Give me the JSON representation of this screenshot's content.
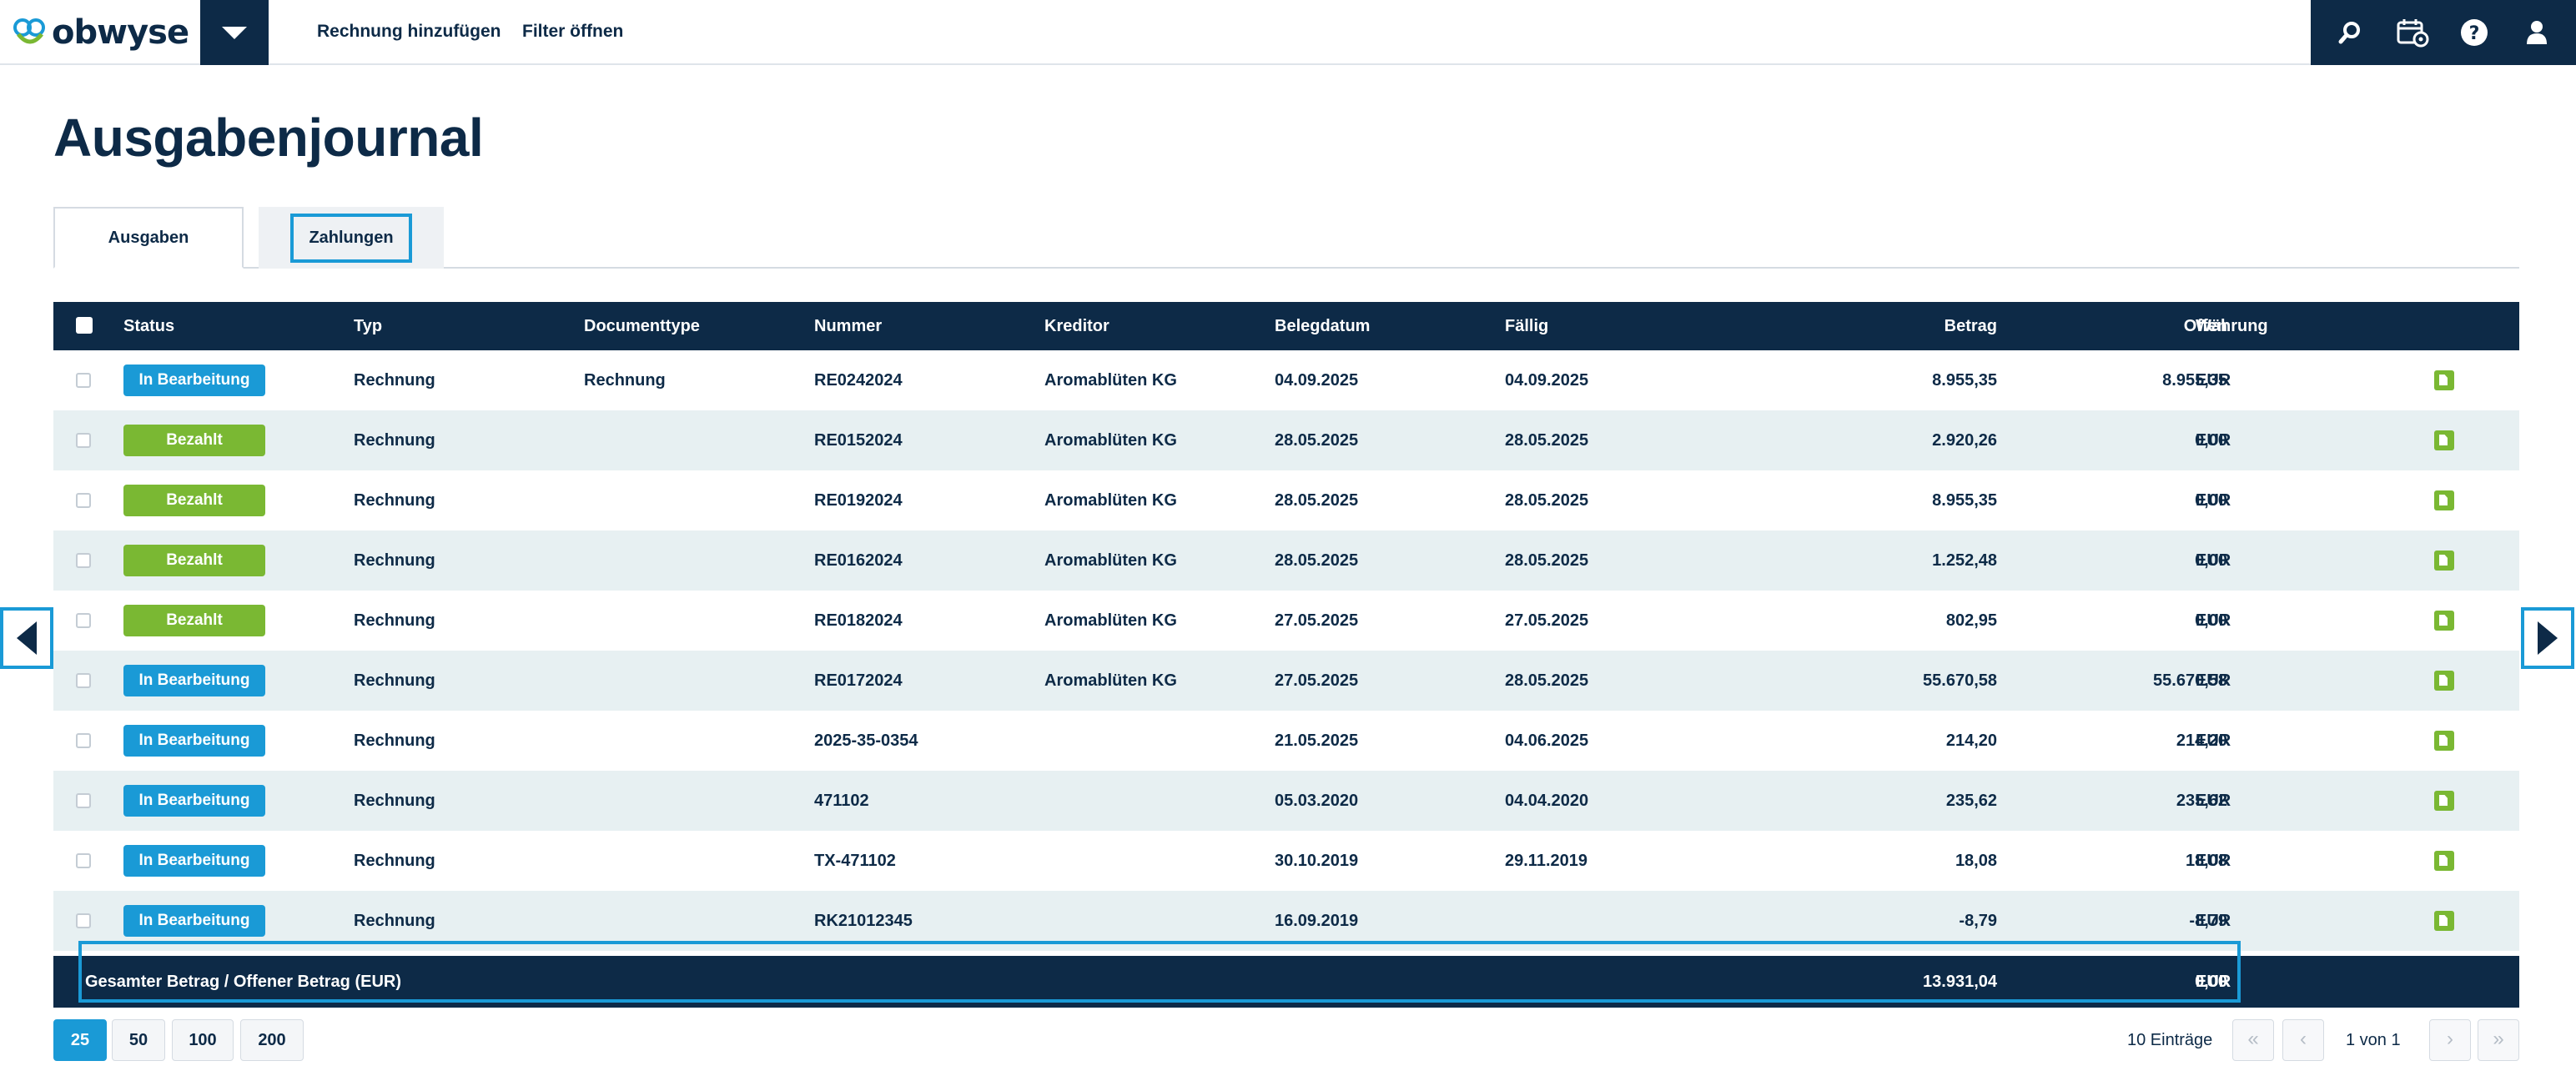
{
  "brand": {
    "name": "obwyse"
  },
  "nav": {
    "links": [
      "Rechnung hinzufügen",
      "Filter öffnen"
    ],
    "icons": [
      "search-icon",
      "calendar-settings-icon",
      "help-icon",
      "user-icon"
    ]
  },
  "page": {
    "title": "Ausgabenjournal"
  },
  "tabs": [
    "Ausgaben",
    "Zahlungen"
  ],
  "table": {
    "headers": {
      "status": "Status",
      "typ": "Typ",
      "documenttype": "Documenttype",
      "nummer": "Nummer",
      "kreditor": "Kreditor",
      "belegdatum": "Belegdatum",
      "faellig": "Fällig",
      "betrag": "Betrag",
      "offen": "Offen",
      "waehrung": "Währung"
    },
    "rows": [
      {
        "status": "In Bearbeitung",
        "status_color": "#1a9ad6",
        "typ": "Rechnung",
        "documenttype": "Rechnung",
        "nummer": "RE0242024",
        "kreditor": "Aromablüten KG",
        "belegdatum": "04.09.2025",
        "faellig": "04.09.2025",
        "betrag": "8.955,35",
        "offen": "8.955,35",
        "waehrung": "EUR"
      },
      {
        "status": "Bezahlt",
        "status_color": "#7ab833",
        "typ": "Rechnung",
        "documenttype": "",
        "nummer": "RE0152024",
        "kreditor": "Aromablüten KG",
        "belegdatum": "28.05.2025",
        "faellig": "28.05.2025",
        "betrag": "2.920,26",
        "offen": "0,00",
        "waehrung": "EUR"
      },
      {
        "status": "Bezahlt",
        "status_color": "#7ab833",
        "typ": "Rechnung",
        "documenttype": "",
        "nummer": "RE0192024",
        "kreditor": "Aromablüten KG",
        "belegdatum": "28.05.2025",
        "faellig": "28.05.2025",
        "betrag": "8.955,35",
        "offen": "0,00",
        "waehrung": "EUR"
      },
      {
        "status": "Bezahlt",
        "status_color": "#7ab833",
        "typ": "Rechnung",
        "documenttype": "",
        "nummer": "RE0162024",
        "kreditor": "Aromablüten KG",
        "belegdatum": "28.05.2025",
        "faellig": "28.05.2025",
        "betrag": "1.252,48",
        "offen": "0,00",
        "waehrung": "EUR"
      },
      {
        "status": "Bezahlt",
        "status_color": "#7ab833",
        "typ": "Rechnung",
        "documenttype": "",
        "nummer": "RE0182024",
        "kreditor": "Aromablüten KG",
        "belegdatum": "27.05.2025",
        "faellig": "27.05.2025",
        "betrag": "802,95",
        "offen": "0,00",
        "waehrung": "EUR"
      },
      {
        "status": "In Bearbeitung",
        "status_color": "#1a9ad6",
        "typ": "Rechnung",
        "documenttype": "",
        "nummer": "RE0172024",
        "kreditor": "Aromablüten KG",
        "belegdatum": "27.05.2025",
        "faellig": "28.05.2025",
        "betrag": "55.670,58",
        "offen": "55.670,58",
        "waehrung": "EUR"
      },
      {
        "status": "In Bearbeitung",
        "status_color": "#1a9ad6",
        "typ": "Rechnung",
        "documenttype": "",
        "nummer": "2025-35-0354",
        "kreditor": "",
        "belegdatum": "21.05.2025",
        "faellig": "04.06.2025",
        "betrag": "214,20",
        "offen": "214,20",
        "waehrung": "EUR"
      },
      {
        "status": "In Bearbeitung",
        "status_color": "#1a9ad6",
        "typ": "Rechnung",
        "documenttype": "",
        "nummer": "471102",
        "kreditor": "",
        "belegdatum": "05.03.2020",
        "faellig": "04.04.2020",
        "betrag": "235,62",
        "offen": "235,62",
        "waehrung": "EUR"
      },
      {
        "status": "In Bearbeitung",
        "status_color": "#1a9ad6",
        "typ": "Rechnung",
        "documenttype": "",
        "nummer": "TX-471102",
        "kreditor": "",
        "belegdatum": "30.10.2019",
        "faellig": "29.11.2019",
        "betrag": "18,08",
        "offen": "18,08",
        "waehrung": "EUR"
      },
      {
        "status": "In Bearbeitung",
        "status_color": "#1a9ad6",
        "typ": "Rechnung",
        "documenttype": "",
        "nummer": "RK21012345",
        "kreditor": "",
        "belegdatum": "16.09.2019",
        "faellig": "",
        "betrag": "-8,79",
        "offen": "-8,79",
        "waehrung": "EUR"
      }
    ],
    "footer": {
      "label": "Gesamter Betrag / Offener Betrag (EUR)",
      "betrag": "13.931,04",
      "offen": "0,00",
      "waehrung": "EUR"
    }
  },
  "pagination": {
    "page_sizes": [
      "25",
      "50",
      "100",
      "200"
    ],
    "active_size": "25",
    "entries": "10 Einträge",
    "page_info": "1 von 1",
    "first": "«",
    "prev": "‹",
    "next": "›",
    "last": "»"
  }
}
